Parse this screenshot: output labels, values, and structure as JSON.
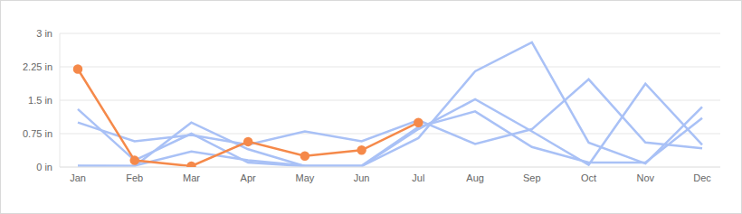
{
  "chart_data": {
    "type": "line",
    "categories": [
      "Jan",
      "Feb",
      "Mar",
      "Apr",
      "May",
      "Jun",
      "Jul",
      "Aug",
      "Sep",
      "Oct",
      "Nov",
      "Dec"
    ],
    "ylim": [
      0,
      3
    ],
    "yticks": [
      {
        "value": 0,
        "label": "0 in"
      },
      {
        "value": 0.75,
        "label": "0.75 in"
      },
      {
        "value": 1.5,
        "label": "1.5 in"
      },
      {
        "value": 2.25,
        "label": "2.25 in"
      },
      {
        "value": 3,
        "label": "3 in"
      }
    ],
    "grid": true,
    "series": [
      {
        "color": "#a9c1f6",
        "marker": "none",
        "line_style": "solid",
        "values": [
          1.3,
          0.15,
          0.75,
          0.1,
          0.02,
          0.02,
          0.65,
          2.15,
          2.8,
          0.55,
          0.08,
          1.35
        ]
      },
      {
        "color": "#a9c1f6",
        "marker": "none",
        "line_style": "solid",
        "values": [
          1.0,
          0.58,
          0.72,
          0.5,
          0.8,
          0.58,
          1.05,
          0.52,
          0.85,
          1.97,
          0.55,
          0.42
        ]
      },
      {
        "color": "#a9c1f6",
        "marker": "none",
        "line_style": "solid",
        "values": [
          0.03,
          0.02,
          1.0,
          0.4,
          0.02,
          0.02,
          0.85,
          1.52,
          0.8,
          0.05,
          1.87,
          0.5
        ]
      },
      {
        "color": "#a9c1f6",
        "marker": "none",
        "line_style": "solid",
        "values": [
          0.02,
          0.03,
          0.35,
          0.15,
          0.03,
          0.03,
          0.9,
          1.25,
          0.45,
          0.1,
          0.1,
          1.1
        ]
      },
      {
        "color": "#f5894a",
        "marker": "circle",
        "line_style": "solid",
        "values": [
          2.2,
          0.15,
          0.02,
          0.57,
          0.25,
          0.38,
          1.0,
          null,
          null,
          null,
          null,
          null
        ]
      }
    ]
  }
}
